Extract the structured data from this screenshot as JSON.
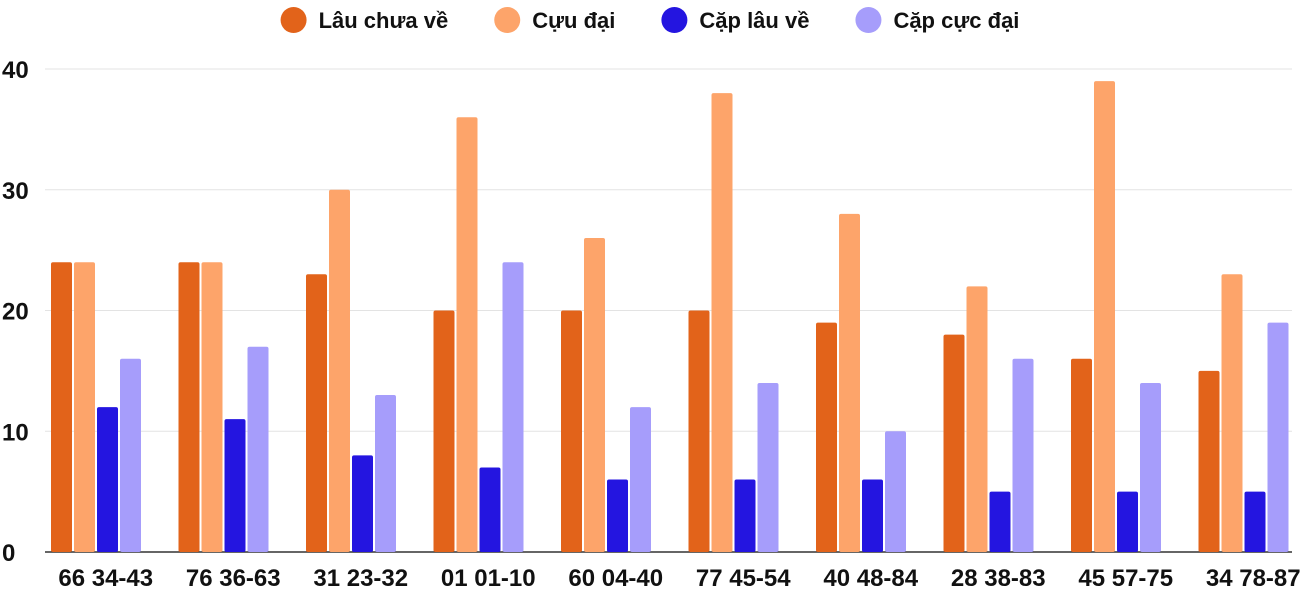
{
  "chart_data": {
    "type": "bar",
    "categories": [
      "66 34-43",
      "76 36-63",
      "31 23-32",
      "01 01-10",
      "60 04-40",
      "77 45-54",
      "40 48-84",
      "28 38-83",
      "45 57-75",
      "34 78-87"
    ],
    "series": [
      {
        "name": "Lâu chưa về",
        "color": "#E2631A",
        "values": [
          24,
          24,
          23,
          20,
          20,
          20,
          19,
          18,
          16,
          15
        ]
      },
      {
        "name": "Cựu đại",
        "color": "#FDA46A",
        "values": [
          24,
          24,
          30,
          36,
          26,
          38,
          28,
          22,
          39,
          23
        ]
      },
      {
        "name": "Cặp lâu về",
        "color": "#2415E0",
        "values": [
          12,
          11,
          8,
          7,
          6,
          6,
          6,
          5,
          5,
          5
        ]
      },
      {
        "name": "Cặp cực đại",
        "color": "#A69DFB",
        "values": [
          16,
          17,
          13,
          24,
          12,
          14,
          10,
          16,
          14,
          19
        ]
      }
    ],
    "y_ticks": [
      "0",
      "10",
      "20",
      "30",
      "40"
    ],
    "ylim": [
      0,
      40
    ],
    "grid": true,
    "legend_position": "top-center"
  }
}
